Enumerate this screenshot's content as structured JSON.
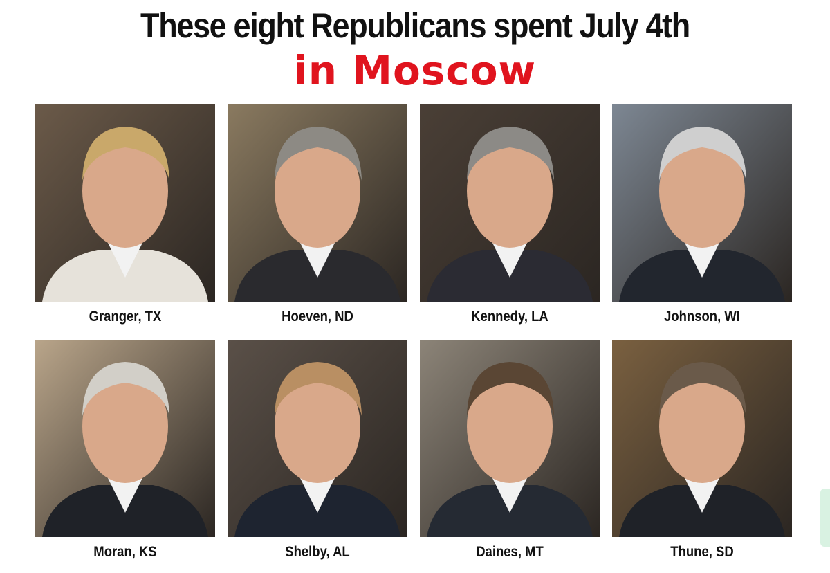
{
  "header": {
    "title": "These eight Republicans spent July 4th",
    "subtitle": "in Moscow"
  },
  "photos": [
    {
      "caption": "Granger, TX"
    },
    {
      "caption": "Hoeven, ND"
    },
    {
      "caption": "Kennedy, LA"
    },
    {
      "caption": "Johnson, WI"
    },
    {
      "caption": "Moran, KS"
    },
    {
      "caption": "Shelby, AL"
    },
    {
      "caption": "Daines, MT"
    },
    {
      "caption": "Thune, SD"
    }
  ]
}
